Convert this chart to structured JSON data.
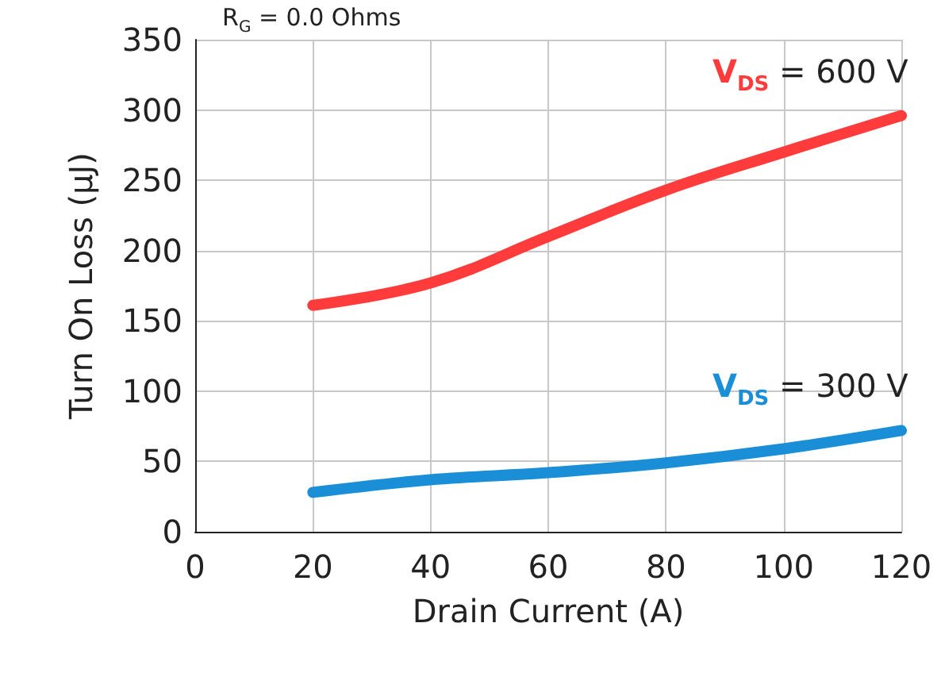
{
  "chart_data": {
    "type": "line",
    "xlabel": "Drain Current (A)",
    "ylabel": "Turn On Loss (µJ)",
    "x": [
      20,
      40,
      60,
      80,
      100,
      120
    ],
    "series": [
      {
        "name": "V$_{DS}$ = 600 V",
        "color": "#ff3b3b",
        "values": [
          161,
          177,
          210,
          243,
          270,
          296
        ]
      },
      {
        "name": "V$_{DS}$ = 300 V",
        "color": "#1a8fd8",
        "values": [
          28,
          37,
          42,
          49,
          59,
          72
        ]
      }
    ],
    "xlim": [
      0,
      120
    ],
    "xticks": [
      0,
      20,
      40,
      60,
      80,
      100,
      120
    ],
    "ylim": [
      0,
      350
    ],
    "yticks": [
      0,
      50,
      100,
      150,
      200,
      250,
      300,
      350
    ],
    "grid": true,
    "legend": false,
    "marker": "none",
    "line_style": "solid",
    "annotations": [
      "R$_{G}$ = 0.0 Ohms"
    ]
  }
}
